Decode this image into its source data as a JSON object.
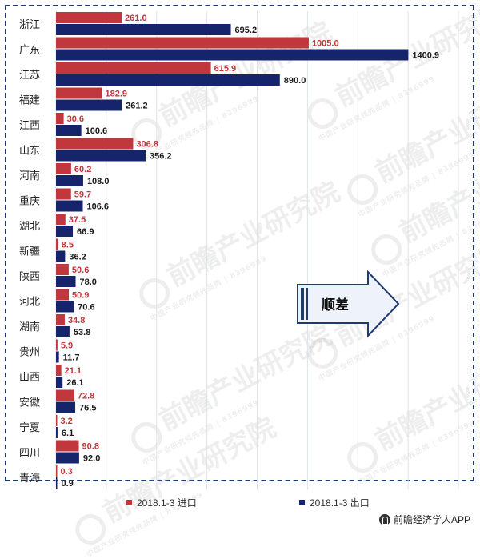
{
  "chart_data": {
    "type": "bar",
    "orientation": "horizontal",
    "categories": [
      "浙江",
      "广东",
      "江苏",
      "福建",
      "江西",
      "山东",
      "河南",
      "重庆",
      "湖北",
      "新疆",
      "陕西",
      "河北",
      "湖南",
      "贵州",
      "山西",
      "安徽",
      "宁夏",
      "四川",
      "青海"
    ],
    "series": [
      {
        "name": "2018.1-3 进口",
        "color": "#c0373d",
        "values": [
          261.0,
          1005.0,
          615.9,
          182.9,
          30.6,
          306.8,
          60.2,
          59.7,
          37.5,
          8.5,
          50.6,
          50.9,
          34.8,
          5.9,
          21.1,
          72.8,
          3.2,
          90.8,
          0.3
        ]
      },
      {
        "name": "2018.1-3 出口",
        "color": "#16256b",
        "values": [
          695.2,
          1400.9,
          890.0,
          261.2,
          100.6,
          356.2,
          108.0,
          106.6,
          66.9,
          36.2,
          78.0,
          70.6,
          53.8,
          11.7,
          26.1,
          76.5,
          6.1,
          92.0,
          0.9
        ]
      }
    ],
    "value_labels": {
      "import": [
        "261.0",
        "1005.0",
        "615.9",
        "182.9",
        "30.6",
        "306.8",
        "60.2",
        "59.7",
        "37.5",
        "8.5",
        "50.6",
        "50.9",
        "34.8",
        "5.9",
        "21.1",
        "72.8",
        "3.2",
        "90.8",
        "0.3"
      ],
      "export": [
        "695.2",
        "1400.9",
        "890.0",
        "261.2",
        "100.6",
        "356.2",
        "108.0",
        "106.6",
        "66.9",
        "36.2",
        "78.0",
        "70.6",
        "53.8",
        "11.7",
        "26.1",
        "76.5",
        "6.1",
        "92.0",
        "0.9"
      ]
    },
    "xlim": [
      0,
      1600
    ],
    "grid": true,
    "legend_position": "bottom",
    "annotation": "顺差"
  },
  "watermark": {
    "text": "前瞻产业研究院",
    "subtext": "中国产业研究领先品牌 | 8396999"
  },
  "source": "前瞻经济学人APP",
  "colors": {
    "import": "#c0373d",
    "export": "#16256b",
    "grid": "#dde3ee",
    "frame": "#1f3a6e",
    "arrow_fill": "#eef3fb",
    "arrow_stroke": "#1f3a6e"
  }
}
